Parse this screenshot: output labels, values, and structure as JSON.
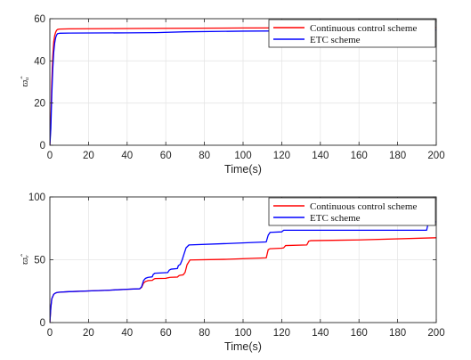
{
  "chart_data": [
    {
      "type": "line",
      "xlabel": "Time(s)",
      "ylabel": "ϖ̂ᵤ",
      "xlim": [
        0,
        200
      ],
      "ylim": [
        0,
        60
      ],
      "xticks": [
        0,
        20,
        40,
        60,
        80,
        100,
        120,
        140,
        160,
        180,
        200
      ],
      "yticks": [
        0,
        20,
        40,
        60
      ],
      "grid": true,
      "legend_position": "top-right",
      "series": [
        {
          "name": "Continuous control scheme",
          "color": "#ff0000",
          "x": [
            0,
            0.5,
            1,
            1.5,
            2,
            2.5,
            3,
            3.5,
            4,
            5,
            10,
            50,
            100,
            150,
            200
          ],
          "y": [
            0,
            12,
            30,
            42,
            49,
            52,
            53.6,
            54.5,
            54.9,
            55.1,
            55.2,
            55.4,
            55.6,
            55.7,
            55.8
          ]
        },
        {
          "name": "ETC scheme",
          "color": "#0000ff",
          "x": [
            0,
            0.5,
            1,
            1.5,
            2,
            2.5,
            3,
            3.5,
            4,
            5,
            10,
            40,
            55,
            70,
            100,
            140,
            180,
            200
          ],
          "y": [
            0,
            8,
            24,
            36,
            44,
            48.5,
            51,
            52.3,
            52.9,
            53.1,
            53.2,
            53.3,
            53.4,
            53.8,
            54.1,
            54.3,
            54.5,
            54.6
          ]
        }
      ]
    },
    {
      "type": "line",
      "xlabel": "Time(s)",
      "ylabel": "ϖ̂ᵥ",
      "xlim": [
        0,
        200
      ],
      "ylim": [
        0,
        100
      ],
      "xticks": [
        0,
        20,
        40,
        60,
        80,
        100,
        120,
        140,
        160,
        180,
        200
      ],
      "yticks": [
        0,
        50,
        100
      ],
      "grid": true,
      "legend_position": "top-right",
      "series": [
        {
          "name": "Continuous control scheme",
          "color": "#ff0000",
          "x": [
            0,
            0.5,
            1,
            2,
            3,
            4,
            6,
            10,
            20,
            30,
            40,
            46.5,
            47.5,
            48.5,
            49.5,
            50.5,
            51,
            53,
            53.8,
            54.5,
            60,
            61,
            62,
            62.5,
            66,
            66.8,
            67.5,
            69,
            70,
            71,
            72.5,
            90,
            112,
            113,
            114,
            120,
            121,
            122,
            133,
            134,
            135,
            160,
            200
          ],
          "y": [
            0,
            12,
            19,
            22.5,
            23.6,
            24,
            24.3,
            24.6,
            25.2,
            25.7,
            26.5,
            26.9,
            28,
            31.5,
            32.7,
            33.2,
            33.4,
            33.6,
            34.6,
            35,
            35.2,
            35.6,
            35.9,
            36,
            36.2,
            37.3,
            37.7,
            38,
            40,
            46,
            49.8,
            50.3,
            51.5,
            58,
            58.8,
            59.2,
            59.5,
            61.3,
            61.8,
            64.8,
            65.2,
            65.8,
            67.5
          ]
        },
        {
          "name": "ETC scheme",
          "color": "#0000ff",
          "x": [
            0,
            0.5,
            1,
            2,
            3,
            4,
            6,
            10,
            20,
            30,
            40,
            46.5,
            47.5,
            48.5,
            49.5,
            50.5,
            51,
            53,
            53.5,
            54.3,
            61,
            61.8,
            62.5,
            62.8,
            66,
            66.5,
            67.5,
            68.5,
            69.5,
            70.5,
            72,
            90,
            112,
            113,
            114,
            120,
            121,
            135,
            150,
            160,
            195,
            196,
            200
          ],
          "y": [
            0,
            12,
            19,
            22.5,
            23.6,
            24,
            24.3,
            24.6,
            25.2,
            25.7,
            26.5,
            26.9,
            28.5,
            33.5,
            35.2,
            35.8,
            36,
            36.4,
            38.3,
            39.3,
            39.8,
            41.7,
            42.3,
            42.5,
            43,
            45.3,
            46.3,
            50,
            54.8,
            59.5,
            61.8,
            62.8,
            64.2,
            69.5,
            71.8,
            72.2,
            73.5,
            73.5,
            73.5,
            73.5,
            73.5,
            80.2,
            80.2
          ]
        }
      ]
    }
  ]
}
